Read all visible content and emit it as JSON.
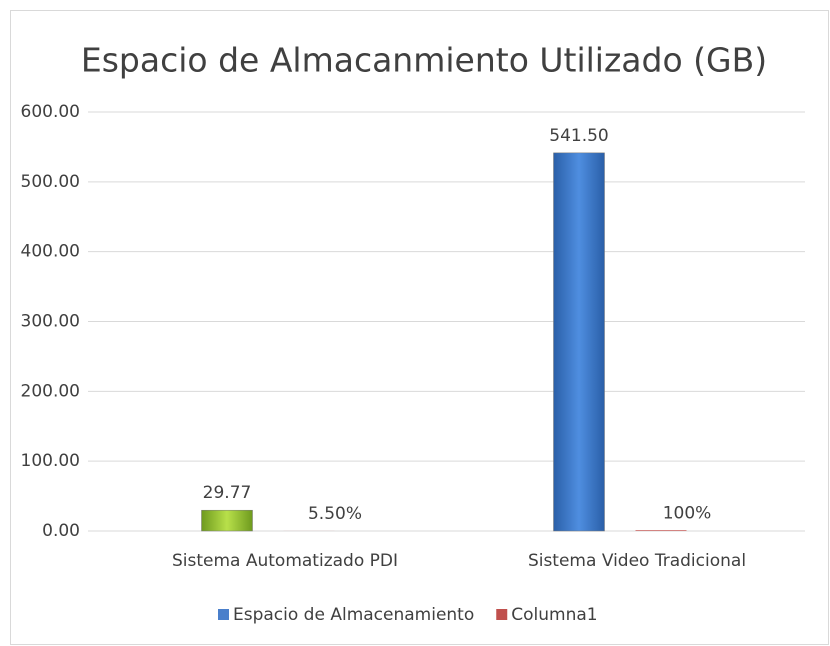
{
  "chart_data": {
    "type": "bar",
    "title": "Espacio de Almacanmiento Utilizado (GB)",
    "categories": [
      "Sistema Automatizado PDI",
      "Sistema Video Tradicional"
    ],
    "series": [
      {
        "name": "Espacio de Almacenamiento",
        "color": "#4a7fcb",
        "point_colors": [
          "#9acd32",
          "#3f7fd0"
        ],
        "values": [
          29.77,
          541.5
        ],
        "value_labels": [
          "29.77",
          "541.50"
        ]
      },
      {
        "name": "Columna1",
        "color": "#c0504d",
        "values": [
          0.055,
          1
        ],
        "value_labels": [
          "5.50%",
          "100%"
        ]
      }
    ],
    "ylim": [
      0,
      600
    ],
    "yticks": [
      {
        "value": 0,
        "label": "0.00"
      },
      {
        "value": 100,
        "label": "100.00"
      },
      {
        "value": 200,
        "label": "200.00"
      },
      {
        "value": 300,
        "label": "300.00"
      },
      {
        "value": 400,
        "label": "400.00"
      },
      {
        "value": 500,
        "label": "500.00"
      },
      {
        "value": 600,
        "label": "600.00"
      }
    ],
    "grid": true,
    "legend": "bottom"
  }
}
